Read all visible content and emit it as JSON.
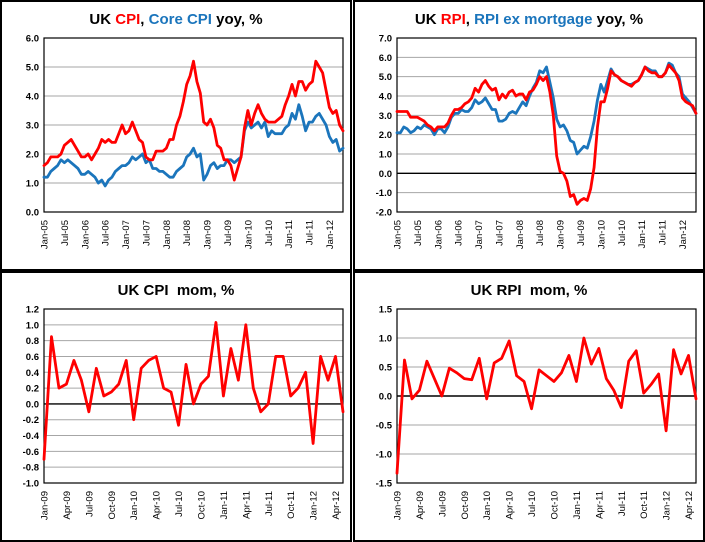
{
  "palette": {
    "series_red": "#FF0000",
    "series_blue": "#1B75BC",
    "text_black": "#000000",
    "gridline_gray": "#A6A6A6",
    "zero_line_black": "#000000"
  },
  "chart_data": [
    {
      "id": "cpi-core-yoy",
      "type": "line",
      "title_parts": [
        {
          "text": "UK ",
          "color": "#000000"
        },
        {
          "text": "CPI",
          "color": "#FF0000"
        },
        {
          "text": ", ",
          "color": "#000000"
        },
        {
          "text": "Core CPI",
          "color": "#1B75BC"
        },
        {
          "text": " yoy, %",
          "color": "#000000"
        }
      ],
      "ylim": [
        0,
        6
      ],
      "ystep": 1,
      "grid": true,
      "y_tick_labels": [
        "6.0",
        "5.0",
        "4.0",
        "3.0",
        "2.0",
        "1.0",
        "0.0"
      ],
      "x_tick_labels": [
        "Jan-05",
        "Jul-05",
        "Jan-06",
        "Jul-06",
        "Jan-07",
        "Jul-07",
        "Jan-08",
        "Jul-08",
        "Jan-09",
        "Jul-09",
        "Jan-10",
        "Jul-10",
        "Jan-11",
        "Jul-11",
        "Jan-12"
      ],
      "x_tick_every": 6,
      "n_points": 89,
      "series": [
        {
          "name": "CPI",
          "color": "#FF0000",
          "values": [
            1.6,
            1.7,
            1.9,
            1.9,
            1.9,
            2.0,
            2.3,
            2.4,
            2.5,
            2.3,
            2.1,
            1.9,
            1.9,
            2.0,
            1.8,
            2.0,
            2.2,
            2.5,
            2.4,
            2.5,
            2.4,
            2.4,
            2.7,
            3.0,
            2.7,
            2.8,
            3.1,
            2.8,
            2.5,
            2.4,
            1.9,
            1.8,
            1.8,
            2.1,
            2.1,
            2.1,
            2.2,
            2.5,
            2.5,
            3.0,
            3.3,
            3.8,
            4.4,
            4.7,
            5.2,
            4.5,
            4.1,
            3.1,
            3.0,
            3.2,
            2.9,
            2.3,
            2.2,
            1.8,
            1.8,
            1.6,
            1.1,
            1.5,
            1.9,
            2.9,
            3.5,
            3.0,
            3.4,
            3.7,
            3.4,
            3.2,
            3.1,
            3.1,
            3.1,
            3.2,
            3.3,
            3.7,
            4.0,
            4.4,
            4.0,
            4.5,
            4.5,
            4.2,
            4.4,
            4.5,
            5.2,
            5.0,
            4.8,
            4.2,
            3.6,
            3.4,
            3.5,
            3.0,
            2.8
          ]
        },
        {
          "name": "Core CPI",
          "color": "#1B75BC",
          "values": [
            1.2,
            1.2,
            1.4,
            1.5,
            1.6,
            1.8,
            1.7,
            1.8,
            1.7,
            1.6,
            1.5,
            1.3,
            1.3,
            1.4,
            1.3,
            1.2,
            1.0,
            1.1,
            0.9,
            1.1,
            1.2,
            1.4,
            1.5,
            1.6,
            1.6,
            1.7,
            1.9,
            1.8,
            1.9,
            2.0,
            1.7,
            1.8,
            1.5,
            1.5,
            1.4,
            1.4,
            1.3,
            1.2,
            1.2,
            1.4,
            1.5,
            1.6,
            1.9,
            2.0,
            2.2,
            1.9,
            2.0,
            1.1,
            1.3,
            1.6,
            1.7,
            1.5,
            1.6,
            1.6,
            1.8,
            1.8,
            1.7,
            1.8,
            1.9,
            2.8,
            3.1,
            2.9,
            3.0,
            3.1,
            2.9,
            3.1,
            2.6,
            2.8,
            2.7,
            2.7,
            2.7,
            2.9,
            3.0,
            3.4,
            3.2,
            3.7,
            3.3,
            2.8,
            3.1,
            3.1,
            3.3,
            3.4,
            3.2,
            3.0,
            2.6,
            2.4,
            2.5,
            2.1,
            2.2
          ]
        }
      ]
    },
    {
      "id": "rpi-rpix-yoy",
      "type": "line",
      "title_parts": [
        {
          "text": "UK ",
          "color": "#000000"
        },
        {
          "text": "RPI",
          "color": "#FF0000"
        },
        {
          "text": ", ",
          "color": "#000000"
        },
        {
          "text": "RPI ex mortgage",
          "color": "#1B75BC"
        },
        {
          "text": " yoy, %",
          "color": "#000000"
        }
      ],
      "ylim": [
        -2,
        7
      ],
      "ystep": 1,
      "grid": true,
      "y_tick_labels": [
        "7.0",
        "6.0",
        "5.0",
        "4.0",
        "3.0",
        "2.0",
        "1.0",
        "0.0",
        "-1.0",
        "-2.0"
      ],
      "x_tick_labels": [
        "Jan-05",
        "Jul-05",
        "Jan-06",
        "Jul-06",
        "Jan-07",
        "Jul-07",
        "Jan-08",
        "Jul-08",
        "Jan-09",
        "Jul-09",
        "Jan-10",
        "Jul-10",
        "Jan-11",
        "Jul-11",
        "Jan-12"
      ],
      "x_tick_every": 6,
      "n_points": 89,
      "series": [
        {
          "name": "RPI",
          "color": "#FF0000",
          "values": [
            3.2,
            3.2,
            3.2,
            3.2,
            2.9,
            2.9,
            2.9,
            2.8,
            2.7,
            2.5,
            2.4,
            2.2,
            2.4,
            2.4,
            2.4,
            2.6,
            3.0,
            3.3,
            3.3,
            3.4,
            3.6,
            3.7,
            3.9,
            4.4,
            4.2,
            4.6,
            4.8,
            4.5,
            4.3,
            4.4,
            3.8,
            4.1,
            3.9,
            4.2,
            4.3,
            4.0,
            4.1,
            4.1,
            3.8,
            4.2,
            4.3,
            4.6,
            5.0,
            4.8,
            5.0,
            4.2,
            3.0,
            0.9,
            0.1,
            0.0,
            -0.4,
            -1.2,
            -1.1,
            -1.6,
            -1.4,
            -1.3,
            -1.4,
            -0.8,
            0.3,
            2.4,
            3.7,
            3.7,
            4.4,
            5.3,
            5.1,
            5.0,
            4.8,
            4.7,
            4.6,
            4.5,
            4.7,
            4.8,
            5.1,
            5.5,
            5.3,
            5.2,
            5.2,
            5.0,
            5.0,
            5.2,
            5.6,
            5.4,
            5.2,
            4.8,
            3.9,
            3.7,
            3.6,
            3.5,
            3.1
          ]
        },
        {
          "name": "RPI ex mortgage",
          "color": "#1B75BC",
          "values": [
            2.1,
            2.1,
            2.4,
            2.3,
            2.1,
            2.2,
            2.4,
            2.3,
            2.5,
            2.4,
            2.3,
            2.0,
            2.3,
            2.3,
            2.1,
            2.4,
            2.9,
            3.1,
            3.1,
            3.3,
            3.2,
            3.2,
            3.4,
            3.8,
            3.6,
            3.7,
            3.9,
            3.6,
            3.3,
            3.3,
            2.7,
            2.7,
            2.8,
            3.1,
            3.2,
            3.1,
            3.4,
            3.7,
            3.5,
            4.0,
            4.4,
            4.7,
            5.3,
            5.2,
            5.5,
            4.7,
            3.9,
            2.8,
            2.4,
            2.5,
            2.2,
            1.7,
            1.6,
            1.0,
            1.2,
            1.4,
            1.3,
            1.9,
            2.7,
            3.8,
            4.6,
            4.2,
            4.8,
            5.4,
            5.1,
            5.0,
            4.8,
            4.7,
            4.6,
            4.6,
            4.7,
            4.8,
            5.1,
            5.5,
            5.4,
            5.3,
            5.3,
            5.0,
            5.0,
            5.2,
            5.7,
            5.6,
            5.2,
            5.0,
            4.1,
            3.9,
            3.7,
            3.4,
            3.1
          ]
        }
      ]
    },
    {
      "id": "cpi-mom",
      "type": "line",
      "title_parts": [
        {
          "text": "UK CPI  mom, %",
          "color": "#000000"
        }
      ],
      "ylim": [
        -1.0,
        1.2
      ],
      "ystep": 0.2,
      "grid": true,
      "y_tick_labels": [
        "1.2",
        "1.0",
        "0.8",
        "0.6",
        "0.4",
        "0.2",
        "0.0",
        "-0.2",
        "-0.4",
        "-0.6",
        "-0.8",
        "-1.0"
      ],
      "x_tick_labels": [
        "Jan-09",
        "Apr-09",
        "Jul-09",
        "Oct-09",
        "Jan-10",
        "Apr-10",
        "Jul-10",
        "Oct-10",
        "Jan-11",
        "Apr-11",
        "Jul-11",
        "Oct-11",
        "Jan-12",
        "Apr-12"
      ],
      "x_tick_every": 3,
      "n_points": 41,
      "series": [
        {
          "name": "CPI mom",
          "color": "#FF0000",
          "values": [
            -0.7,
            0.85,
            0.2,
            0.25,
            0.55,
            0.3,
            -0.1,
            0.45,
            0.1,
            0.15,
            0.25,
            0.55,
            -0.2,
            0.45,
            0.55,
            0.6,
            0.2,
            0.15,
            -0.27,
            0.5,
            0.0,
            0.25,
            0.35,
            1.03,
            0.1,
            0.7,
            0.3,
            1.0,
            0.2,
            -0.1,
            0.0,
            0.6,
            0.6,
            0.1,
            0.2,
            0.4,
            -0.5,
            0.6,
            0.3,
            0.6,
            -0.1
          ]
        }
      ]
    },
    {
      "id": "rpi-mom",
      "type": "line",
      "title_parts": [
        {
          "text": "UK RPI  mom, %",
          "color": "#000000"
        }
      ],
      "ylim": [
        -1.5,
        1.5
      ],
      "ystep": 0.5,
      "grid": true,
      "y_tick_labels": [
        "1.5",
        "1.0",
        "0.5",
        "0.0",
        "-0.5",
        "-1.0",
        "-1.5"
      ],
      "x_tick_labels": [
        "Jan-09",
        "Apr-09",
        "Jul-09",
        "Oct-09",
        "Jan-10",
        "Apr-10",
        "Jul-10",
        "Oct-10",
        "Jan-11",
        "Apr-11",
        "Jul-11",
        "Oct-11",
        "Jan-12",
        "Apr-12"
      ],
      "x_tick_every": 3,
      "n_points": 41,
      "series": [
        {
          "name": "RPI mom",
          "color": "#FF0000",
          "values": [
            -1.33,
            0.62,
            -0.05,
            0.1,
            0.6,
            0.3,
            0.0,
            0.48,
            0.4,
            0.3,
            0.28,
            0.65,
            -0.05,
            0.57,
            0.65,
            0.95,
            0.35,
            0.25,
            -0.22,
            0.45,
            0.35,
            0.25,
            0.4,
            0.7,
            0.25,
            1.0,
            0.55,
            0.82,
            0.3,
            0.1,
            -0.2,
            0.6,
            0.78,
            0.05,
            0.2,
            0.38,
            -0.6,
            0.8,
            0.38,
            0.7,
            -0.05
          ]
        }
      ]
    }
  ]
}
